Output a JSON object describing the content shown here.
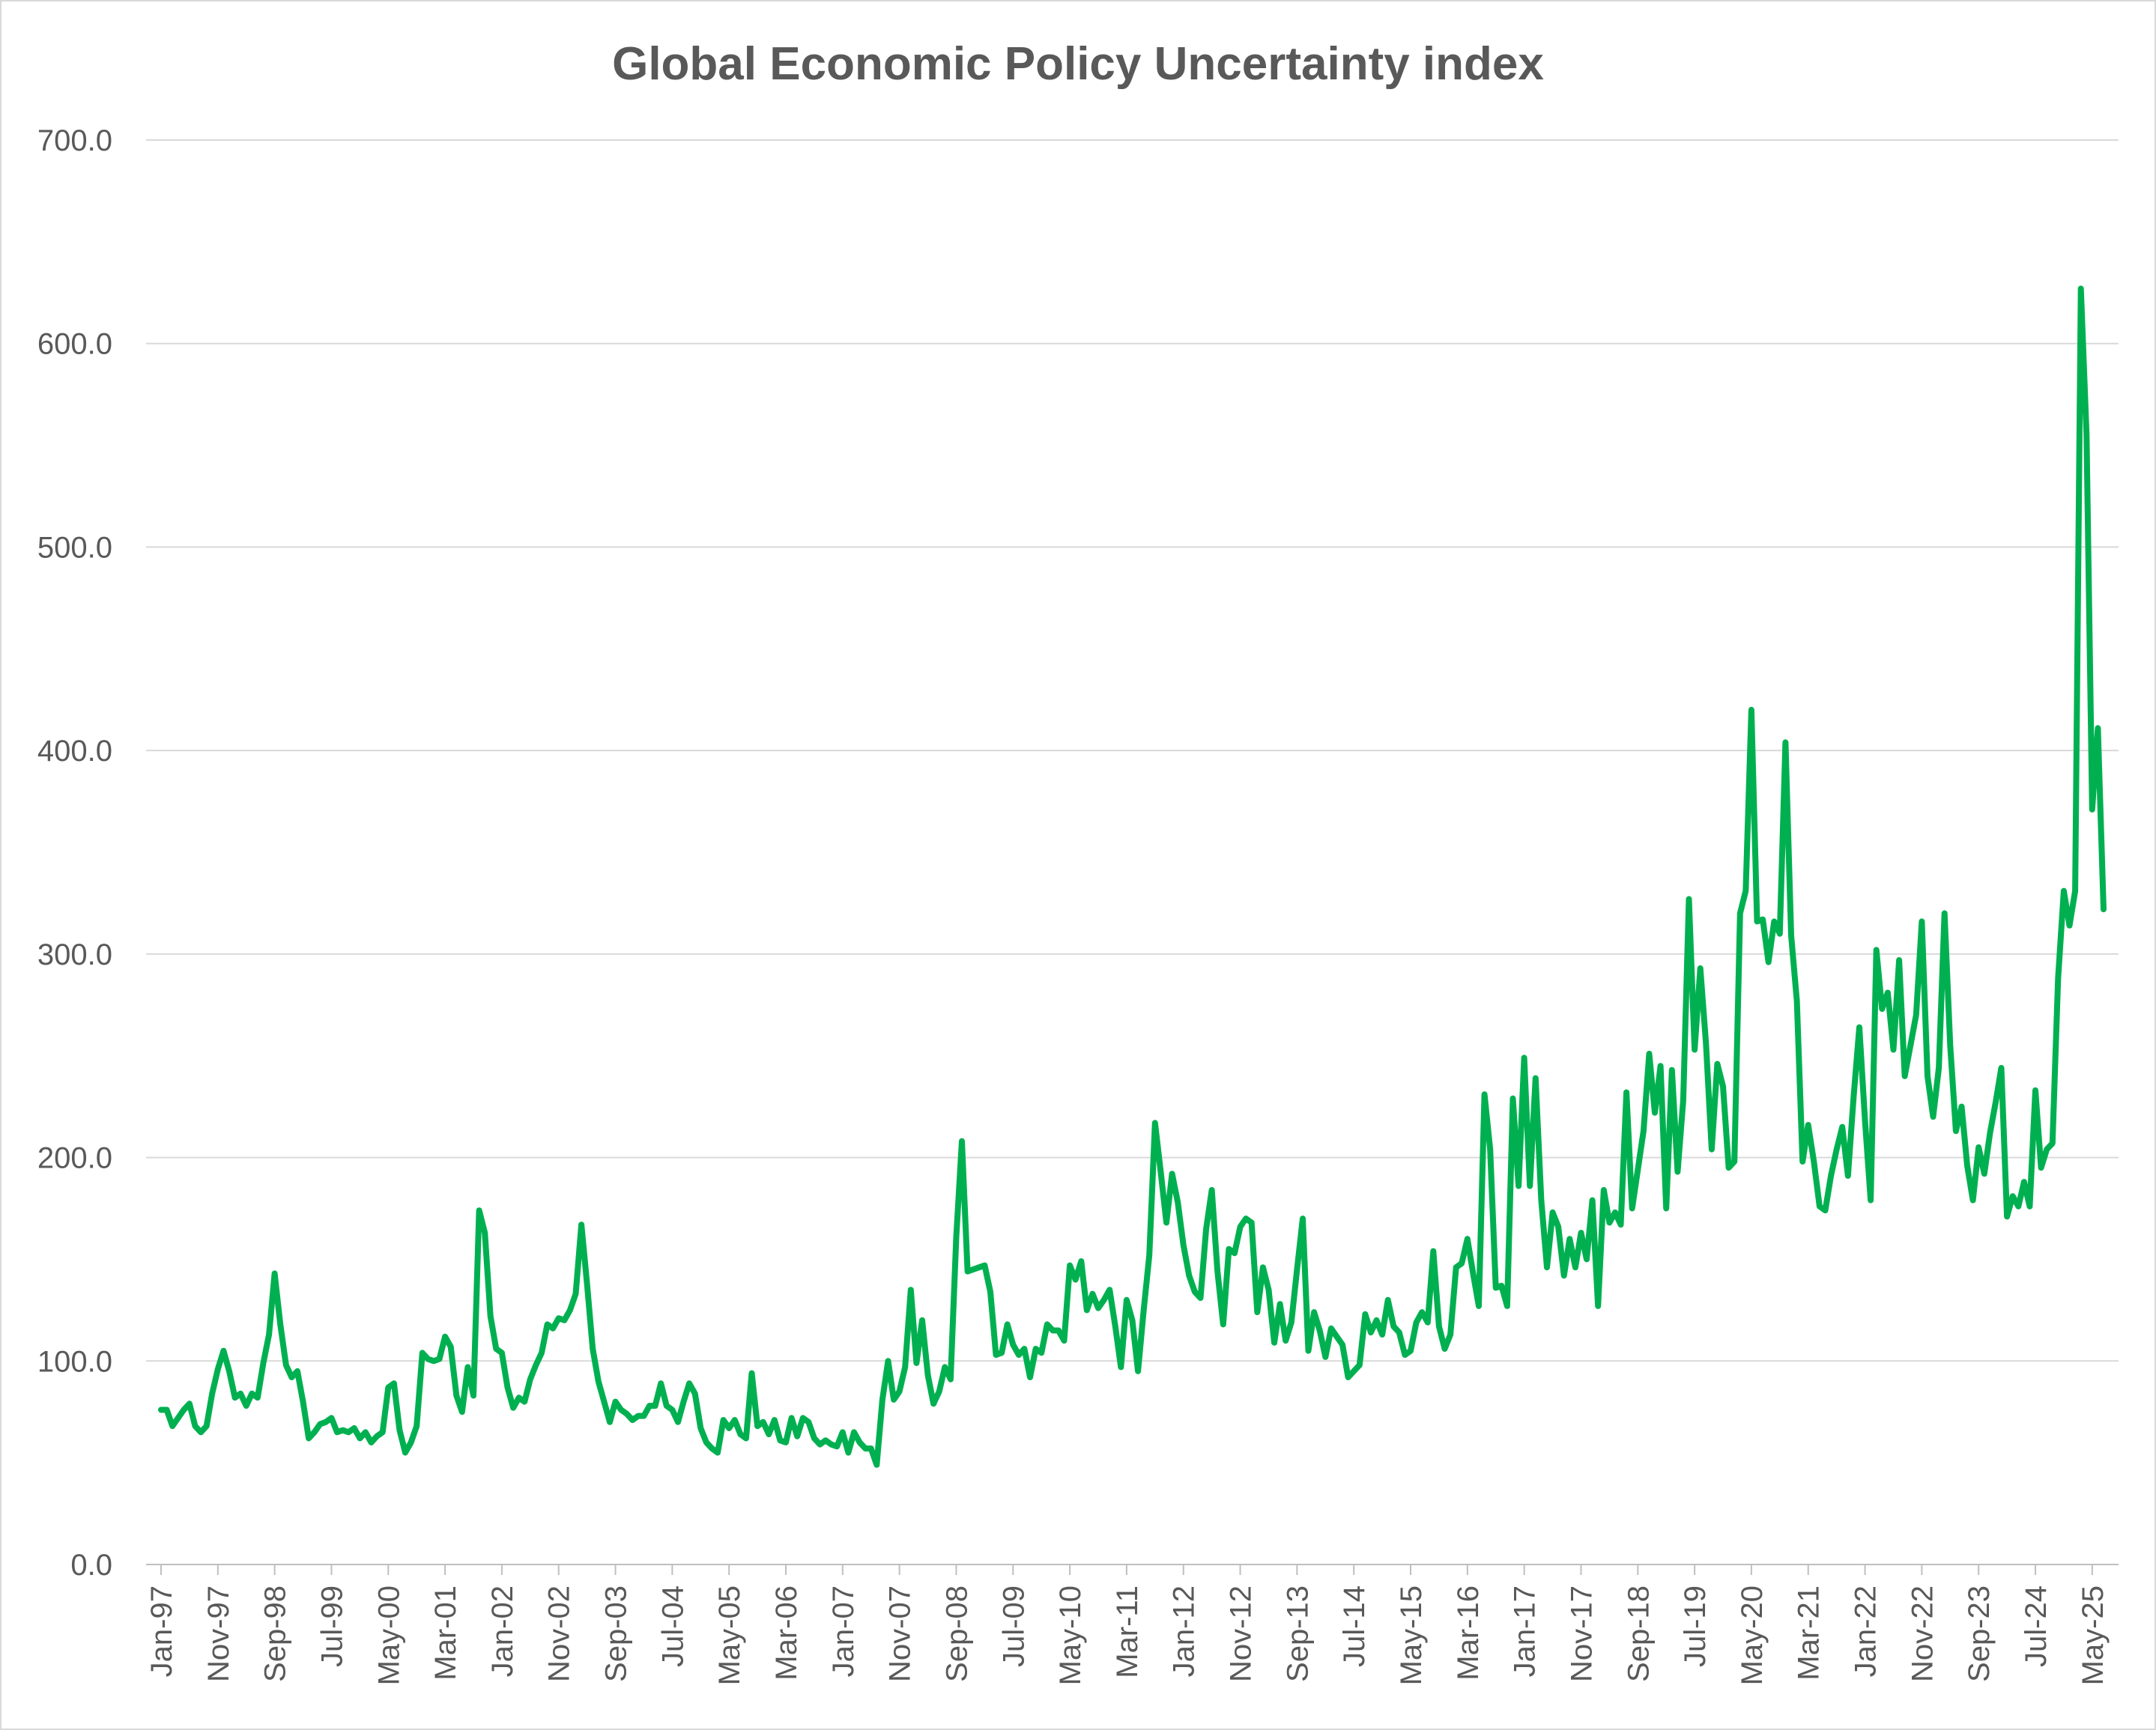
{
  "chart_data": {
    "type": "line",
    "title": "Global Economic Policy Uncertainty index",
    "xlabel": "",
    "ylabel": "",
    "ylim": [
      0,
      700
    ],
    "yticks": [
      "0.0",
      "100.0",
      "200.0",
      "300.0",
      "400.0",
      "500.0",
      "600.0",
      "700.0"
    ],
    "ytick_values": [
      0,
      100,
      200,
      300,
      400,
      500,
      600,
      700
    ],
    "grid": true,
    "legend": "none",
    "colors": {
      "series": "#00b050",
      "grid": "#d9d9d9",
      "text": "#595959"
    },
    "x_start": "Jan-97",
    "x_tick_labels": [
      "Jan-97",
      "Nov-97",
      "Sep-98",
      "Jul-99",
      "May-00",
      "Mar-01",
      "Jan-02",
      "Nov-02",
      "Sep-03",
      "Jul-04",
      "May-05",
      "Mar-06",
      "Jan-07",
      "Nov-07",
      "Sep-08",
      "Jul-09",
      "May-10",
      "Mar-11",
      "Jan-12",
      "Nov-12",
      "Sep-13",
      "Jul-14",
      "May-15",
      "Mar-16",
      "Jan-17",
      "Nov-17",
      "Sep-18",
      "Jul-19",
      "May-20",
      "Mar-21",
      "Jan-22",
      "Nov-22",
      "Sep-23",
      "Jul-24",
      "May-25"
    ],
    "x_tick_every_months": 10,
    "series": [
      {
        "name": "Global Economic Policy Uncertainty index",
        "values": [
          76,
          76,
          68,
          72,
          76,
          79,
          68,
          65,
          68,
          84,
          96,
          105,
          95,
          82,
          84,
          78,
          84,
          82,
          99,
          113,
          143,
          118,
          98,
          92,
          95,
          80,
          62,
          65,
          69,
          70,
          72,
          65,
          66,
          65,
          67,
          62,
          65,
          60,
          63,
          65,
          87,
          89,
          66,
          55,
          60,
          68,
          104,
          101,
          100,
          101,
          112,
          107,
          83,
          75,
          97,
          83,
          174,
          163,
          122,
          106,
          104,
          87,
          77,
          82,
          80,
          91,
          98,
          104,
          118,
          116,
          121,
          120,
          125,
          133,
          167,
          138,
          106,
          90,
          80,
          70,
          80,
          76,
          74,
          71,
          73,
          73,
          78,
          78,
          89,
          78,
          76,
          70,
          80,
          89,
          84,
          67,
          60,
          57,
          55,
          71,
          67,
          71,
          64,
          62,
          94,
          68,
          70,
          64,
          71,
          61,
          60,
          72,
          63,
          72,
          70,
          62,
          59,
          61,
          59,
          58,
          65,
          55,
          65,
          60,
          57,
          57,
          49,
          81,
          100,
          81,
          85,
          97,
          135,
          99,
          120,
          93,
          79,
          85,
          97,
          91,
          161,
          208,
          144,
          145,
          146,
          147,
          134,
          103,
          104,
          118,
          108,
          103,
          106,
          92,
          106,
          104,
          118,
          115,
          115,
          110,
          147,
          140,
          149,
          125,
          133,
          126,
          130,
          135,
          117,
          97,
          130,
          120,
          95,
          125,
          152,
          217,
          193,
          168,
          192,
          178,
          157,
          142,
          134,
          131,
          165,
          184,
          144,
          118,
          155,
          153,
          166,
          170,
          168,
          124,
          146,
          135,
          109,
          128,
          110,
          119,
          145,
          170,
          105,
          124,
          115,
          102,
          116,
          112,
          108,
          92,
          95,
          98,
          123,
          114,
          120,
          113,
          130,
          117,
          114,
          103,
          105,
          119,
          124,
          119,
          154,
          117,
          106,
          113,
          146,
          148,
          160,
          143,
          127,
          231,
          204,
          136,
          137,
          127,
          229,
          186,
          249,
          186,
          239,
          179,
          146,
          173,
          166,
          142,
          160,
          146,
          163,
          150,
          179,
          127,
          184,
          168,
          173,
          167,
          232,
          175,
          194,
          213,
          251,
          222,
          245,
          175,
          243,
          193,
          228,
          327,
          253,
          293,
          256,
          204,
          246,
          235,
          195,
          198,
          320,
          331,
          420,
          316,
          317,
          296,
          316,
          310,
          404,
          309,
          277,
          198,
          216,
          198,
          176,
          174,
          191,
          204,
          215,
          191,
          230,
          264,
          218,
          179,
          302,
          273,
          281,
          253,
          297,
          240,
          255,
          270,
          316,
          240,
          220,
          244,
          320,
          255,
          213,
          225,
          196,
          179,
          205,
          192,
          212,
          227,
          244,
          171,
          181,
          176,
          188,
          176,
          233,
          195,
          204,
          207,
          288,
          331,
          314,
          331,
          627,
          555,
          371,
          411,
          322
        ]
      }
    ]
  }
}
